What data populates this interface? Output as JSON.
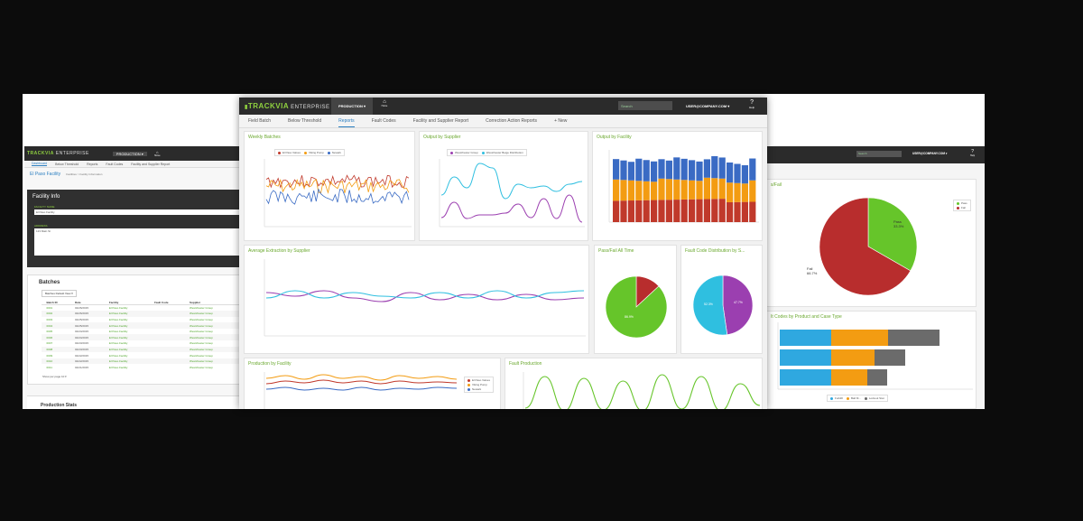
{
  "colors": {
    "brand_green": "#8fd13f",
    "dark_bar": "#2b2b2b",
    "link_blue": "#2b7fc1",
    "red": "#c0392b",
    "orange": "#f39c12",
    "blue": "#3a6bc4",
    "cyan": "#2fbfe0",
    "purple": "#9b3fb0",
    "green": "#66c52a",
    "gray": "#6b6b6b"
  },
  "brand": {
    "name": "TRACKVIA",
    "edition": "ENTERPRISE"
  },
  "main": {
    "nav": {
      "production": "PRODUCTION ▾",
      "home_icon": "home-icon",
      "home_label": "Home",
      "search_placeholder": "Search",
      "email": "USER@COMPANY.COM ▾",
      "help_icon": "?",
      "help_label": "Help"
    },
    "tabs": [
      "Field Batch",
      "Below Threshold",
      "Reports",
      "Fault Codes",
      "Facility and Supplier Report",
      "Correction Action Reports",
      "+ New"
    ],
    "active_tab": "Reports",
    "panels": {
      "weekly": {
        "title": "Weekly Batches",
        "legend": [
          "El Paso Valves",
          "Viking Pump",
          "Newark"
        ]
      },
      "output": {
        "title": "Output by Supplier",
        "legend": [
          "Westchester Group",
          "Westchester Beige Distribution"
        ]
      },
      "facility": {
        "title": "Output by Facility"
      },
      "avg": {
        "title": "Average Extraction by Supplier"
      },
      "passfail": {
        "title": "Pass/Fail All Time",
        "pass_pct": "86.9%"
      },
      "faultdist": {
        "title": "Fault Code Distribution by S...",
        "a_pct": "52.3%",
        "b_pct": "47.7%"
      },
      "prodfacility": {
        "title": "Production by Facility",
        "legend": [
          "El Paso Valves",
          "Viking Pump",
          "Newark"
        ]
      },
      "faultprod": {
        "title": "Fault Production"
      }
    }
  },
  "left": {
    "brand": "TRACKVIA",
    "edition": "ENTERPRISE",
    "nav": {
      "production": "PRODUCTION ▾",
      "home": "Home"
    },
    "tabs": [
      "Dashboard",
      "Below Threshold",
      "Reports",
      "Fault Codes",
      "Facility and Supplier Report"
    ],
    "breadcrumb": "El Paso Facility",
    "breadcrumb_sub": "Facilities > Facility Information",
    "facility_title": "Facility Info",
    "facility_name_label": "FACILITY NAME",
    "facility_name_value": "El Paso Facility",
    "address_label": "ADDRESS",
    "address_value": "123 Main St",
    "batches_title": "Batches",
    "view_select": "Batches Default View ▾",
    "columns": [
      "Batch ID",
      "Date",
      "Facility",
      "Fault Code",
      "Supplier"
    ],
    "rows": [
      [
        "0001",
        "02/26/2015",
        "El Paso Facility",
        "",
        "Westchester Group"
      ],
      [
        "0002",
        "02/26/2015",
        "El Paso Facility",
        "",
        "Westchester Group"
      ],
      [
        "0003",
        "02/25/2015",
        "El Paso Facility",
        "",
        "Westchester Group"
      ],
      [
        "0004",
        "02/25/2015",
        "El Paso Facility",
        "",
        "Westchester Group"
      ],
      [
        "0005",
        "02/24/2015",
        "El Paso Facility",
        "",
        "Westchester Group"
      ],
      [
        "0006",
        "02/24/2015",
        "El Paso Facility",
        "",
        "Westchester Group"
      ],
      [
        "0007",
        "02/23/2015",
        "El Paso Facility",
        "",
        "Westchester Group"
      ],
      [
        "0008",
        "02/23/2015",
        "El Paso Facility",
        "",
        "Westchester Group"
      ],
      [
        "0009",
        "02/22/2015",
        "El Paso Facility",
        "",
        "Westchester Group"
      ],
      [
        "0010",
        "02/22/2015",
        "El Paso Facility",
        "",
        "Westchester Group"
      ],
      [
        "0011",
        "02/21/2015",
        "El Paso Facility",
        "",
        "Westchester Group"
      ]
    ],
    "rows_per_page": "Show per page 10 ▾",
    "production_stats": "Production Stats"
  },
  "right": {
    "search_placeholder": "Search",
    "email": "USER@COMPANY.COM ▾",
    "help_icon": "?",
    "help_label": "Help",
    "pie_title": "s/Fail",
    "pie_legend": [
      "Pass",
      "Fail"
    ],
    "pass_label": "Pass",
    "pass_pct": "33.3%",
    "fail_label": "Fail",
    "fail_pct": "66.7%",
    "bar_title": "It Codes by Product and Case Type",
    "bar_legend": [
      "Forklift",
      "Ball M...",
      "Lockout Stat"
    ]
  }
}
